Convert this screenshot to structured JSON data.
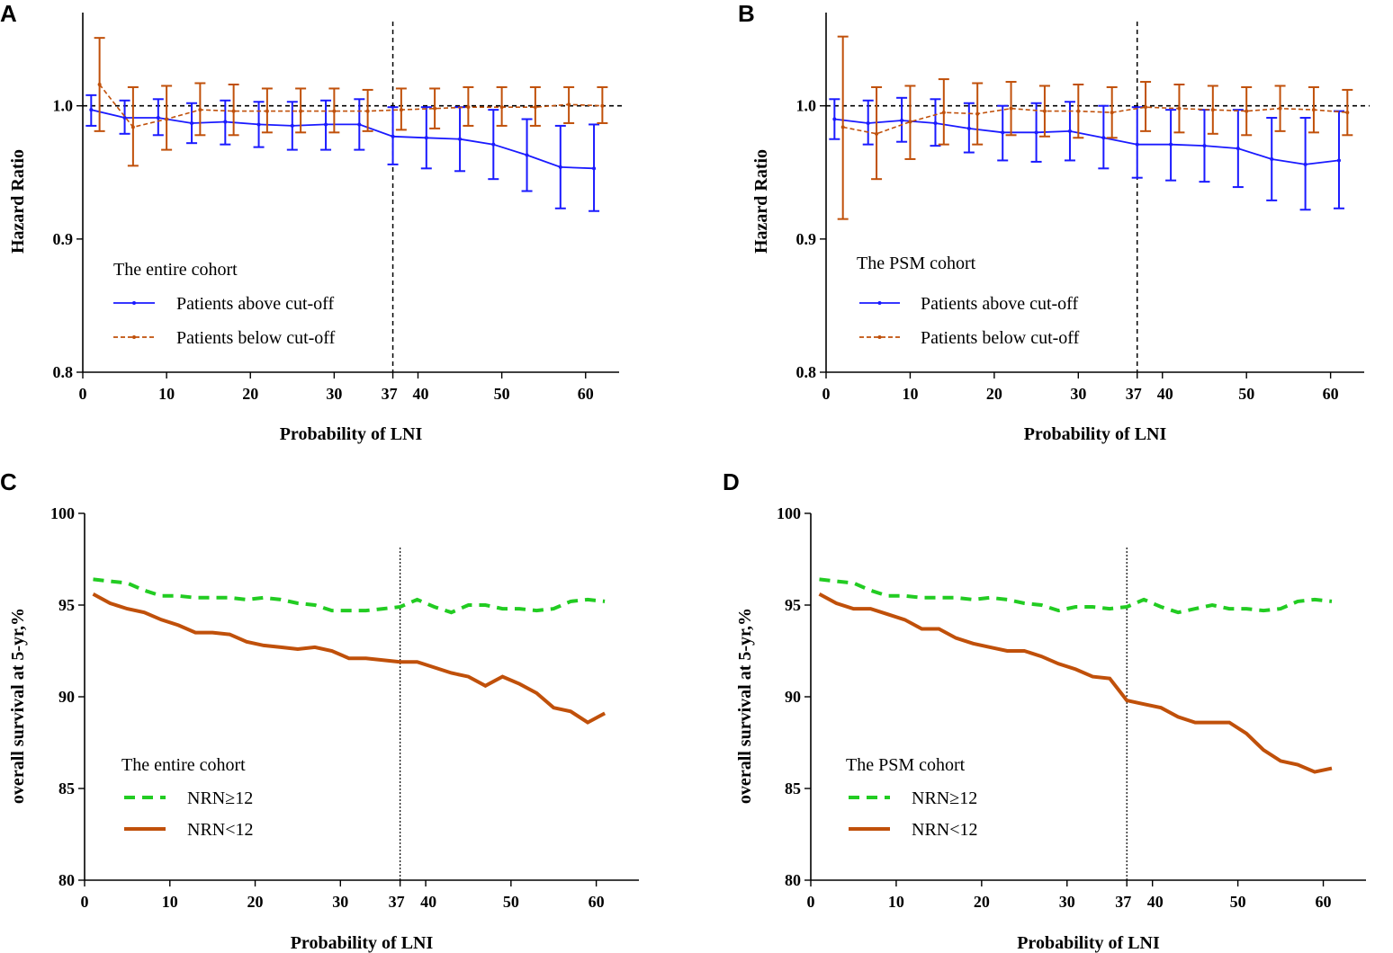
{
  "chart_data": [
    {
      "panel": "A",
      "type": "line",
      "xlabel": "Probability of LNI",
      "ylabel": "Hazard Ratio",
      "xlim": [
        0,
        64
      ],
      "ylim": [
        0.8,
        1.07
      ],
      "xticks": [
        0,
        10,
        20,
        30,
        37,
        40,
        50,
        60
      ],
      "yticks": [
        0.8,
        0.9,
        1.0
      ],
      "ytick_labels": [
        "0.8",
        "0.9",
        "1.0"
      ],
      "cutoff": 37,
      "reference_y": 1.0,
      "legend_title": "The entire cohort",
      "series": [
        {
          "name": "Patients above cut-off",
          "style": "solid",
          "color": "#1a1aff",
          "x": [
            1,
            5,
            9,
            13,
            17,
            21,
            25,
            29,
            33,
            37,
            41,
            45,
            49,
            53,
            57,
            61
          ],
          "y": [
            0.997,
            0.991,
            0.991,
            0.987,
            0.988,
            0.986,
            0.985,
            0.986,
            0.986,
            0.977,
            0.976,
            0.975,
            0.971,
            0.963,
            0.954,
            0.953
          ],
          "lo": [
            0.985,
            0.979,
            0.978,
            0.972,
            0.971,
            0.969,
            0.967,
            0.967,
            0.967,
            0.956,
            0.953,
            0.951,
            0.945,
            0.936,
            0.923,
            0.921
          ],
          "hi": [
            1.008,
            1.004,
            1.005,
            1.002,
            1.004,
            1.003,
            1.003,
            1.004,
            1.005,
            0.999,
            0.999,
            0.999,
            0.997,
            0.99,
            0.985,
            0.986
          ]
        },
        {
          "name": "Patients below cut-off",
          "style": "dashed",
          "color": "#c0500a",
          "x": [
            2,
            6,
            10,
            14,
            18,
            22,
            26,
            30,
            34,
            38,
            42,
            46,
            50,
            54,
            58,
            62
          ],
          "y": [
            1.016,
            0.984,
            0.99,
            0.997,
            0.996,
            0.996,
            0.996,
            0.996,
            0.996,
            0.997,
            0.998,
            0.999,
            0.999,
            0.999,
            1.001,
            1.0
          ],
          "lo": [
            0.981,
            0.955,
            0.967,
            0.978,
            0.978,
            0.98,
            0.98,
            0.98,
            0.981,
            0.982,
            0.983,
            0.985,
            0.985,
            0.985,
            0.987,
            0.987
          ],
          "hi": [
            1.051,
            1.014,
            1.015,
            1.017,
            1.016,
            1.013,
            1.013,
            1.013,
            1.012,
            1.013,
            1.013,
            1.014,
            1.014,
            1.014,
            1.014,
            1.014
          ]
        }
      ]
    },
    {
      "panel": "B",
      "type": "line",
      "xlabel": "Probability of LNI",
      "ylabel": "Hazard Ratio",
      "xlim": [
        0,
        64
      ],
      "ylim": [
        0.8,
        1.07
      ],
      "xticks": [
        0,
        10,
        20,
        30,
        37,
        40,
        50,
        60
      ],
      "yticks": [
        0.8,
        0.9,
        1.0
      ],
      "ytick_labels": [
        "0.8",
        "0.9",
        "1.0"
      ],
      "cutoff": 37,
      "reference_y": 1.0,
      "legend_title": "The PSM cohort",
      "series": [
        {
          "name": "Patients above cut-off",
          "style": "solid",
          "color": "#1a1aff",
          "x": [
            1,
            5,
            9,
            13,
            17,
            21,
            25,
            29,
            33,
            37,
            41,
            45,
            49,
            53,
            57,
            61
          ],
          "y": [
            0.99,
            0.987,
            0.989,
            0.987,
            0.983,
            0.98,
            0.98,
            0.981,
            0.976,
            0.971,
            0.971,
            0.97,
            0.968,
            0.96,
            0.956,
            0.959
          ],
          "lo": [
            0.975,
            0.971,
            0.973,
            0.97,
            0.965,
            0.959,
            0.958,
            0.959,
            0.953,
            0.946,
            0.944,
            0.943,
            0.939,
            0.929,
            0.922,
            0.923
          ],
          "hi": [
            1.005,
            1.004,
            1.006,
            1.005,
            1.002,
            1.0,
            1.002,
            1.003,
            1.0,
            0.999,
            0.997,
            0.997,
            0.997,
            0.991,
            0.991,
            0.996
          ]
        },
        {
          "name": "Patients below cut-off",
          "style": "dashed",
          "color": "#c0500a",
          "x": [
            2,
            6,
            10,
            14,
            18,
            22,
            26,
            30,
            34,
            38,
            42,
            46,
            50,
            54,
            58,
            62
          ],
          "y": [
            0.984,
            0.979,
            0.988,
            0.995,
            0.994,
            0.998,
            0.996,
            0.996,
            0.995,
            0.999,
            0.998,
            0.997,
            0.996,
            0.998,
            0.997,
            0.995
          ],
          "lo": [
            0.915,
            0.945,
            0.96,
            0.971,
            0.971,
            0.978,
            0.977,
            0.976,
            0.976,
            0.981,
            0.98,
            0.979,
            0.978,
            0.981,
            0.98,
            0.978
          ],
          "hi": [
            1.052,
            1.014,
            1.015,
            1.02,
            1.017,
            1.018,
            1.015,
            1.016,
            1.014,
            1.018,
            1.016,
            1.015,
            1.014,
            1.015,
            1.014,
            1.012
          ]
        }
      ]
    },
    {
      "panel": "C",
      "type": "line",
      "xlabel": "Probability of LNI",
      "ylabel": "overall survival at 5-yr,%",
      "xlim": [
        0,
        65
      ],
      "ylim": [
        80,
        100
      ],
      "xticks": [
        0,
        10,
        20,
        30,
        37,
        40,
        50,
        60
      ],
      "yticks": [
        80,
        85,
        90,
        95,
        100
      ],
      "ytick_labels": [
        "80",
        "85",
        "90",
        "95",
        "100"
      ],
      "cutoff": 37,
      "legend_title": "The entire cohort",
      "series": [
        {
          "name": "NRN≥12",
          "style": "dashed",
          "color": "#22cc22",
          "x": [
            1,
            3,
            5,
            7,
            9,
            11,
            13,
            15,
            17,
            19,
            21,
            23,
            25,
            27,
            29,
            31,
            33,
            35,
            37,
            39,
            41,
            43,
            45,
            47,
            49,
            51,
            53,
            55,
            57,
            59,
            61
          ],
          "y": [
            96.4,
            96.3,
            96.2,
            95.8,
            95.5,
            95.5,
            95.4,
            95.4,
            95.4,
            95.3,
            95.4,
            95.3,
            95.1,
            95.0,
            94.7,
            94.7,
            94.7,
            94.8,
            94.9,
            95.3,
            94.9,
            94.6,
            95.0,
            95.0,
            94.8,
            94.8,
            94.7,
            94.8,
            95.2,
            95.3,
            95.2
          ]
        },
        {
          "name": "NRN<12",
          "style": "solid",
          "color": "#c0500a",
          "x": [
            1,
            3,
            5,
            7,
            9,
            11,
            13,
            15,
            17,
            19,
            21,
            23,
            25,
            27,
            29,
            31,
            33,
            35,
            37,
            39,
            41,
            43,
            45,
            47,
            49,
            51,
            53,
            55,
            57,
            59,
            61
          ],
          "y": [
            95.6,
            95.1,
            94.8,
            94.6,
            94.2,
            93.9,
            93.5,
            93.5,
            93.4,
            93.0,
            92.8,
            92.7,
            92.6,
            92.7,
            92.5,
            92.1,
            92.1,
            92.0,
            91.9,
            91.9,
            91.6,
            91.3,
            91.1,
            90.6,
            91.1,
            90.7,
            90.2,
            89.4,
            89.2,
            88.6,
            89.1
          ]
        }
      ]
    },
    {
      "panel": "D",
      "type": "line",
      "xlabel": "Probability of LNI",
      "ylabel": "overall survival at 5-yr,%",
      "xlim": [
        0,
        65
      ],
      "ylim": [
        80,
        100
      ],
      "xticks": [
        0,
        10,
        20,
        30,
        37,
        40,
        50,
        60
      ],
      "yticks": [
        80,
        85,
        90,
        95,
        100
      ],
      "ytick_labels": [
        "80",
        "85",
        "90",
        "95",
        "100"
      ],
      "cutoff": 37,
      "legend_title": "The PSM cohort",
      "series": [
        {
          "name": "NRN≥12",
          "style": "dashed",
          "color": "#22cc22",
          "x": [
            1,
            3,
            5,
            7,
            9,
            11,
            13,
            15,
            17,
            19,
            21,
            23,
            25,
            27,
            29,
            31,
            33,
            35,
            37,
            39,
            41,
            43,
            45,
            47,
            49,
            51,
            53,
            55,
            57,
            59,
            61
          ],
          "y": [
            96.4,
            96.3,
            96.2,
            95.8,
            95.5,
            95.5,
            95.4,
            95.4,
            95.4,
            95.3,
            95.4,
            95.3,
            95.1,
            95.0,
            94.7,
            94.9,
            94.9,
            94.8,
            94.9,
            95.3,
            94.9,
            94.6,
            94.8,
            95.0,
            94.8,
            94.8,
            94.7,
            94.8,
            95.2,
            95.3,
            95.2
          ]
        },
        {
          "name": "NRN<12",
          "style": "solid",
          "color": "#c0500a",
          "x": [
            1,
            3,
            5,
            7,
            9,
            11,
            13,
            15,
            17,
            19,
            21,
            23,
            25,
            27,
            29,
            31,
            33,
            35,
            37,
            39,
            41,
            43,
            45,
            47,
            49,
            51,
            53,
            55,
            57,
            59,
            61
          ],
          "y": [
            95.6,
            95.1,
            94.8,
            94.8,
            94.5,
            94.2,
            93.7,
            93.7,
            93.2,
            92.9,
            92.7,
            92.5,
            92.5,
            92.2,
            91.8,
            91.5,
            91.1,
            91.0,
            89.8,
            89.6,
            89.4,
            88.9,
            88.6,
            88.6,
            88.6,
            88.0,
            87.1,
            86.5,
            86.3,
            85.9,
            86.1
          ]
        }
      ]
    }
  ]
}
